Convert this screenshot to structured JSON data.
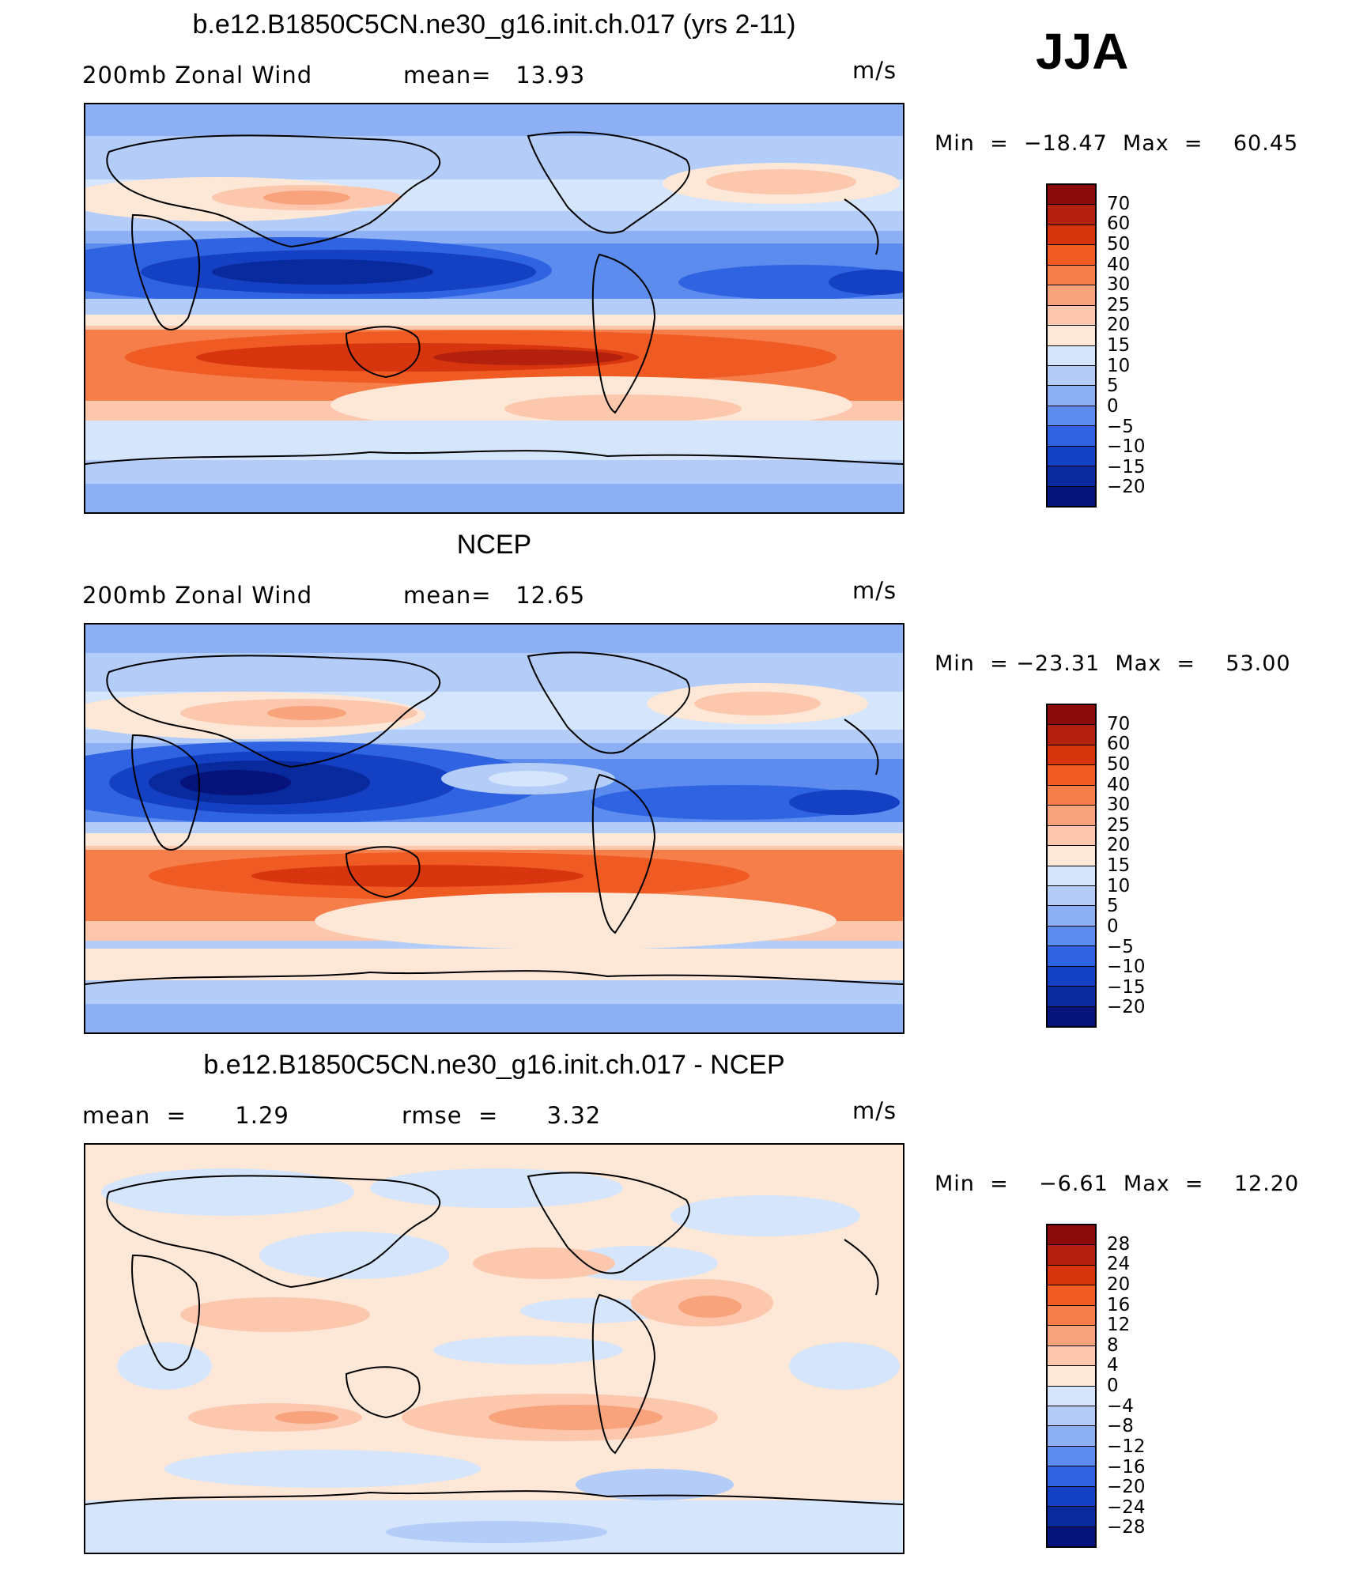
{
  "season": "JJA",
  "units": "m/s",
  "panels": [
    {
      "title": "b.e12.B1850C5CN.ne30_g16.init.ch.017 (yrs 2-11)",
      "left_label": "200mb Zonal Wind",
      "center_label": "mean=   13.93",
      "units": "m/s",
      "minmax": "Min  =  −18.47  Max  =    60.45",
      "colorbar": {
        "labels": [
          "70",
          "60",
          "50",
          "40",
          "30",
          "25",
          "20",
          "15",
          "10",
          "5",
          "0",
          "−5",
          "−10",
          "−15",
          "−20"
        ],
        "colors": [
          "#8b0a0a",
          "#b4200e",
          "#d6350e",
          "#f05a23",
          "#f57e4a",
          "#f9a37c",
          "#fcc7ad",
          "#fde7d7",
          "#d5e5fb",
          "#b3cdf8",
          "#8db0f4",
          "#5b8cee",
          "#2f63e2",
          "#1440c4",
          "#082a9c",
          "#05137a"
        ]
      }
    },
    {
      "title": "NCEP",
      "left_label": "200mb Zonal Wind",
      "center_label": "mean=   12.65",
      "units": "m/s",
      "minmax": "Min  = −23.31  Max  =    53.00",
      "colorbar": {
        "labels": [
          "70",
          "60",
          "50",
          "40",
          "30",
          "25",
          "20",
          "15",
          "10",
          "5",
          "0",
          "−5",
          "−10",
          "−15",
          "−20"
        ],
        "colors": [
          "#8b0a0a",
          "#b4200e",
          "#d6350e",
          "#f05a23",
          "#f57e4a",
          "#f9a37c",
          "#fcc7ad",
          "#fde7d7",
          "#d5e5fb",
          "#b3cdf8",
          "#8db0f4",
          "#5b8cee",
          "#2f63e2",
          "#1440c4",
          "#082a9c",
          "#05137a"
        ]
      }
    },
    {
      "title": "b.e12.B1850C5CN.ne30_g16.init.ch.017 - NCEP",
      "left_label": "mean  =      1.29",
      "center_label": "rmse  =      3.32",
      "units": "m/s",
      "minmax": "Min  =    −6.61  Max  =    12.20",
      "colorbar": {
        "labels": [
          "28",
          "24",
          "20",
          "16",
          "12",
          "8",
          "4",
          "0",
          "−4",
          "−8",
          "−12",
          "−16",
          "−20",
          "−24",
          "−28"
        ],
        "colors": [
          "#8b0a0a",
          "#b4200e",
          "#d6350e",
          "#f05a23",
          "#f57e4a",
          "#f9a37c",
          "#fcc7ad",
          "#fde7d7",
          "#d5e5fb",
          "#b3cdf8",
          "#8db0f4",
          "#5b8cee",
          "#2f63e2",
          "#1440c4",
          "#082a9c",
          "#05137a"
        ]
      }
    }
  ]
}
